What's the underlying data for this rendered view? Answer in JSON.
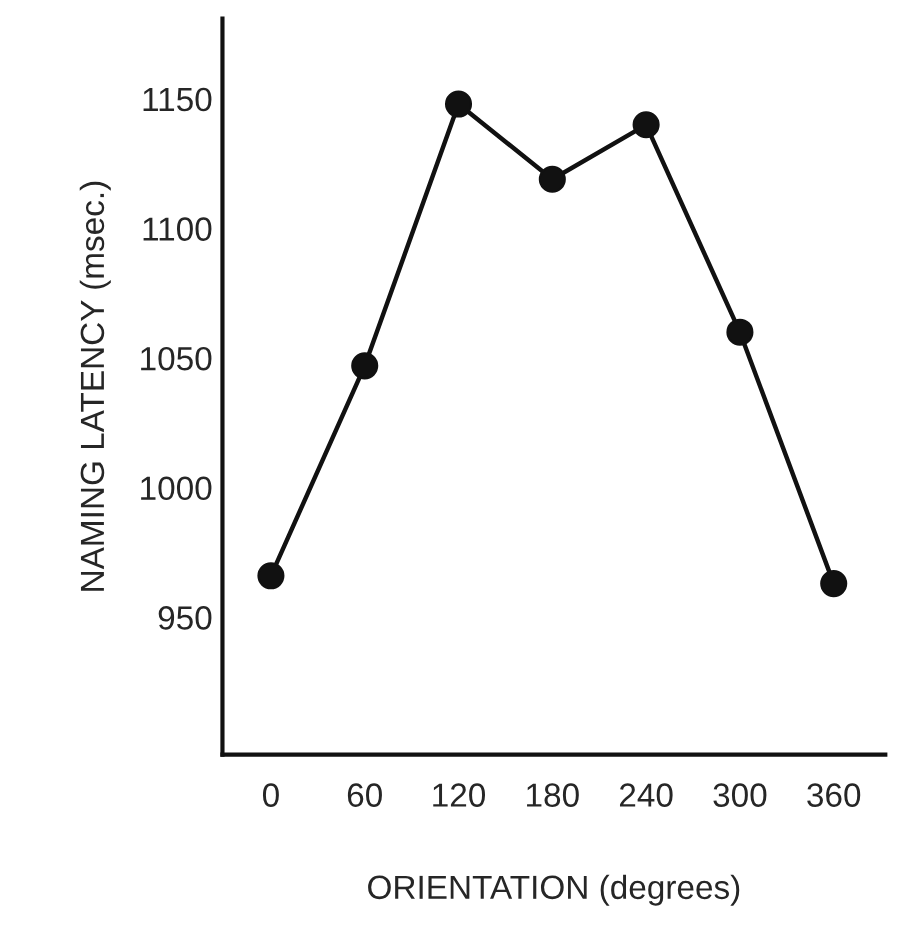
{
  "chart_data": {
    "type": "line",
    "xlabel": "ORIENTATION (degrees)",
    "ylabel": "NAMING LATENCY (msec.)",
    "x": [
      0,
      60,
      120,
      180,
      240,
      300,
      360
    ],
    "series": [
      {
        "color": "#111111",
        "values": [
          966,
          1047,
          1148,
          1119,
          1140,
          1060,
          963
        ]
      }
    ],
    "xlim": [
      -31,
      393
    ],
    "xticks": [
      0,
      60,
      120,
      180,
      240,
      300,
      360
    ],
    "ylim": [
      897,
      1181
    ],
    "yticks": [
      950,
      1000,
      1050,
      1100,
      1150
    ],
    "marker": "circle",
    "line_style": "solid",
    "grid": false,
    "legend": false
  }
}
